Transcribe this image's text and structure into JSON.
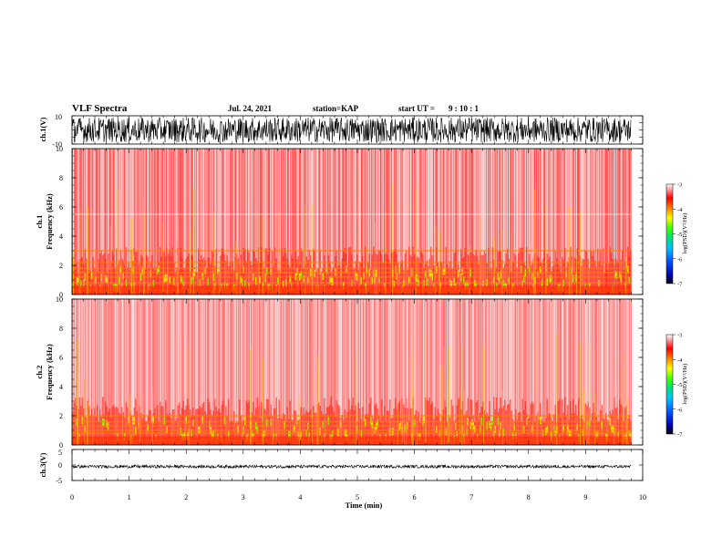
{
  "header": {
    "title": "VLF Spectra",
    "date": "Jul. 24, 2021",
    "station": "station=KAP",
    "start_label": "start UT =",
    "start_time": "9 : 10 : 1"
  },
  "chart_data": [
    {
      "type": "line",
      "name": "ch1-waveform",
      "ylabel": "ch.1(V)",
      "ylim": [
        -10,
        10
      ],
      "yticks": [
        "10",
        "-10"
      ],
      "xlim": [
        0,
        10
      ],
      "description_values": {
        "mean": 0,
        "amplitude_approx": 9
      }
    },
    {
      "type": "heatmap",
      "name": "ch1-spectrogram",
      "ylabel": "ch.1\nFrequency (kHz)",
      "ylim": [
        0,
        10
      ],
      "yticks": [
        "0",
        "2",
        "4",
        "6",
        "8",
        "10"
      ],
      "xlim": [
        0,
        9.8
      ],
      "colorbar": {
        "label": "log(PSD)(V²/Hz)",
        "range": [
          -7,
          -3
        ],
        "ticks": [
          "-3",
          "-4",
          "-5",
          "-6",
          "-7"
        ]
      },
      "bands_khz": [
        0.3,
        0.8,
        1.2,
        1.5,
        1.8,
        2.2,
        3.0
      ]
    },
    {
      "type": "heatmap",
      "name": "ch2-spectrogram",
      "ylabel": "ch.2\nFrequency (kHz)",
      "ylim": [
        0,
        10
      ],
      "yticks": [
        "0",
        "2",
        "4",
        "6",
        "8",
        "10"
      ],
      "xlim": [
        0,
        9.8
      ],
      "colorbar": {
        "label": "log(PSD)(V²/Hz)",
        "range": [
          -7,
          -3
        ],
        "ticks": [
          "-3",
          "-4",
          "-5",
          "-6",
          "-7"
        ]
      },
      "bands_khz": [
        0.3,
        0.8,
        1.0,
        1.3,
        1.6,
        2.0
      ]
    },
    {
      "type": "line",
      "name": "ch3-waveform",
      "ylabel": "ch.3(V)",
      "ylim": [
        -5,
        5
      ],
      "yticks": [
        "5",
        "0",
        "-5"
      ],
      "xlim": [
        0,
        10
      ],
      "description_values": {
        "mean": -0.5,
        "amplitude_approx": 0.5
      }
    }
  ],
  "xaxis": {
    "label": "Time (min)",
    "ticks": [
      "0",
      "1",
      "2",
      "3",
      "4",
      "5",
      "6",
      "7",
      "8",
      "9",
      "10"
    ],
    "range": [
      0,
      10
    ]
  }
}
